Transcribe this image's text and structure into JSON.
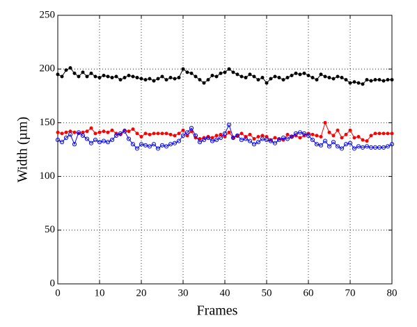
{
  "chart_data": {
    "type": "line",
    "xlabel": "Frames",
    "ylabel": "Width (µm)",
    "x": [
      0,
      1,
      2,
      3,
      4,
      5,
      6,
      7,
      8,
      9,
      10,
      11,
      12,
      13,
      14,
      15,
      16,
      17,
      18,
      19,
      20,
      21,
      22,
      23,
      24,
      25,
      26,
      27,
      28,
      29,
      30,
      31,
      32,
      33,
      34,
      35,
      36,
      37,
      38,
      39,
      40,
      41,
      42,
      43,
      44,
      45,
      46,
      47,
      48,
      49,
      50,
      51,
      52,
      53,
      54,
      55,
      56,
      57,
      58,
      59,
      60,
      61,
      62,
      63,
      64,
      65,
      66,
      67,
      68,
      69,
      70,
      71,
      72,
      73,
      74,
      75,
      76,
      77,
      78,
      79,
      80
    ],
    "series": [
      {
        "color": "#000000",
        "marker": "dot",
        "values": [
          195,
          193,
          199,
          201,
          196,
          193,
          197,
          193,
          196,
          193,
          192,
          194,
          193,
          192,
          193,
          190,
          192,
          194,
          193,
          192,
          191,
          190,
          191,
          189,
          191,
          193,
          190,
          192,
          191,
          192,
          200,
          197,
          196,
          193,
          190,
          187,
          190,
          194,
          193,
          196,
          197,
          200,
          197,
          195,
          193,
          192,
          195,
          193,
          190,
          192,
          187,
          191,
          193,
          192,
          190,
          192,
          194,
          196,
          195,
          196,
          194,
          192,
          190,
          195,
          193,
          192,
          191,
          193,
          192,
          190,
          187,
          188,
          187,
          186,
          190,
          189,
          190,
          190,
          189,
          190,
          190
        ]
      },
      {
        "color": "#ff0000",
        "marker": "dot",
        "values": [
          141,
          140,
          141,
          142,
          141,
          140,
          141,
          142,
          145,
          140,
          141,
          142,
          141,
          143,
          140,
          139,
          143,
          142,
          144,
          140,
          137,
          140,
          139,
          140,
          140,
          140,
          140,
          139,
          138,
          140,
          143,
          138,
          142,
          136,
          135,
          136,
          137,
          136,
          138,
          139,
          137,
          141,
          136,
          138,
          140,
          137,
          139,
          135,
          137,
          138,
          137,
          134,
          136,
          135,
          134,
          139,
          137,
          138,
          136,
          138,
          140,
          139,
          138,
          137,
          150,
          141,
          138,
          143,
          136,
          139,
          143,
          136,
          137,
          134,
          133,
          138,
          140,
          140,
          140,
          140,
          140
        ]
      },
      {
        "color": "#0000ff",
        "marker": "circle",
        "values": [
          134,
          132,
          136,
          139,
          130,
          141,
          138,
          135,
          131,
          134,
          132,
          133,
          132,
          134,
          138,
          140,
          142,
          135,
          130,
          126,
          130,
          129,
          128,
          130,
          126,
          129,
          128,
          130,
          131,
          133,
          138,
          141,
          145,
          138,
          132,
          134,
          136,
          133,
          134,
          136,
          140,
          148,
          136,
          138,
          134,
          135,
          133,
          130,
          132,
          135,
          134,
          133,
          131,
          134,
          136,
          135,
          137,
          140,
          141,
          140,
          138,
          134,
          130,
          129,
          133,
          128,
          132,
          128,
          126,
          130,
          131,
          126,
          128,
          127,
          128,
          127,
          127,
          127,
          127,
          128,
          130
        ]
      }
    ],
    "xlim": [
      0,
      80
    ],
    "xticks": [
      0,
      10,
      20,
      30,
      40,
      50,
      60,
      70,
      80
    ],
    "ylim": [
      0,
      250
    ],
    "yticks": [
      0,
      50,
      100,
      150,
      200,
      250
    ],
    "grid": true
  }
}
